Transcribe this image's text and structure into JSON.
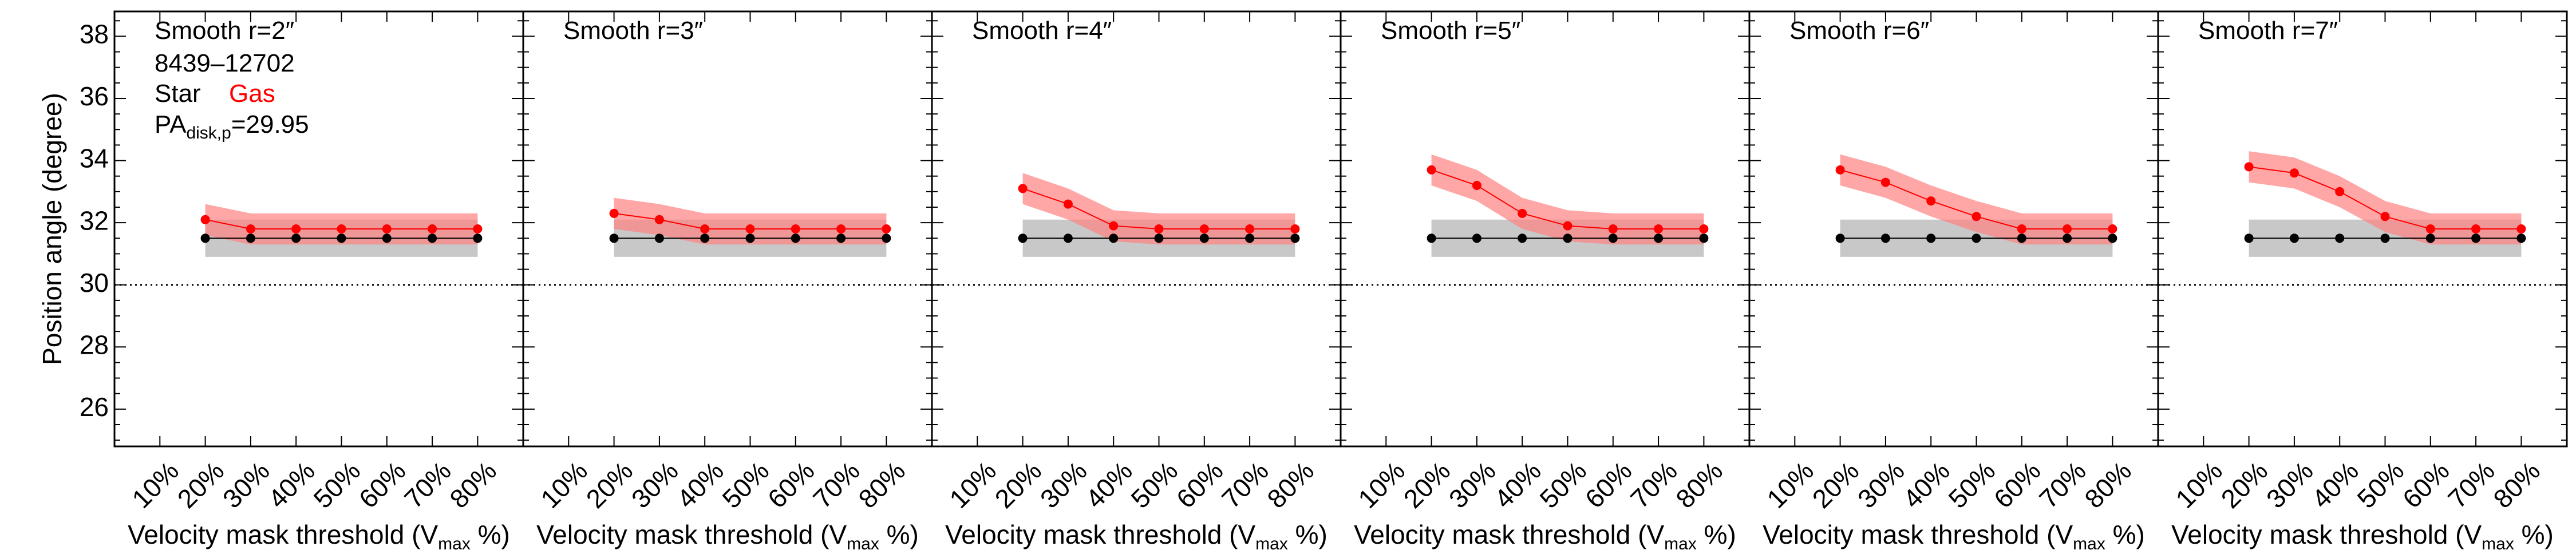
{
  "figure": {
    "ylabel": "Position angle (degree)",
    "xlabel_prefix": "Velocity mask threshold (V",
    "xlabel_sub": "max",
    "xlabel_suffix": " %)",
    "ylim": [
      24.8,
      38.8
    ],
    "yticks": [
      26,
      28,
      30,
      32,
      34,
      36,
      38
    ],
    "reference_line": 30,
    "categories": [
      "10%",
      "20%",
      "30%",
      "40%",
      "50%",
      "60%",
      "70%",
      "80%"
    ],
    "info": {
      "galaxy_id": "8439–12702",
      "star_label": "Star",
      "gas_label": "Gas",
      "pa_prefix": "PA",
      "pa_sub": "disk,p",
      "pa_value": "=29.95"
    },
    "colors": {
      "star": "#000000",
      "gas": "#ff0000",
      "gas_band": "#ff8080",
      "star_band": "#c8c8c8"
    }
  },
  "chart_data": [
    {
      "type": "line",
      "title": "Smooth r=2″",
      "categories": [
        "20%",
        "30%",
        "40%",
        "50%",
        "60%",
        "70%",
        "80%"
      ],
      "series": [
        {
          "name": "Star",
          "values": [
            31.5,
            31.5,
            31.5,
            31.5,
            31.5,
            31.5,
            31.5
          ],
          "band": [
            30.9,
            32.1
          ]
        },
        {
          "name": "Gas",
          "values": [
            32.1,
            31.8,
            31.8,
            31.8,
            31.8,
            31.8,
            31.8
          ],
          "band_lower": [
            31.6,
            31.3,
            31.3,
            31.3,
            31.3,
            31.3,
            31.3
          ],
          "band_upper": [
            32.6,
            32.3,
            32.3,
            32.3,
            32.3,
            32.3,
            32.3
          ]
        }
      ],
      "xlabel": "Velocity mask threshold (Vmax %)",
      "ylabel": "Position angle (degree)",
      "ylim": [
        24.8,
        38.8
      ]
    },
    {
      "type": "line",
      "title": "Smooth r=3″",
      "categories": [
        "20%",
        "30%",
        "40%",
        "50%",
        "60%",
        "70%",
        "80%"
      ],
      "series": [
        {
          "name": "Star",
          "values": [
            31.5,
            31.5,
            31.5,
            31.5,
            31.5,
            31.5,
            31.5
          ],
          "band": [
            30.9,
            32.1
          ]
        },
        {
          "name": "Gas",
          "values": [
            32.3,
            32.1,
            31.8,
            31.8,
            31.8,
            31.8,
            31.8
          ],
          "band_lower": [
            31.8,
            31.6,
            31.3,
            31.3,
            31.3,
            31.3,
            31.3
          ],
          "band_upper": [
            32.8,
            32.6,
            32.3,
            32.3,
            32.3,
            32.3,
            32.3
          ]
        }
      ],
      "xlabel": "Velocity mask threshold (Vmax %)",
      "ylabel": "Position angle (degree)",
      "ylim": [
        24.8,
        38.8
      ]
    },
    {
      "type": "line",
      "title": "Smooth r=4″",
      "categories": [
        "20%",
        "30%",
        "40%",
        "50%",
        "60%",
        "70%",
        "80%"
      ],
      "series": [
        {
          "name": "Star",
          "values": [
            31.5,
            31.5,
            31.5,
            31.5,
            31.5,
            31.5,
            31.5
          ],
          "band": [
            30.9,
            32.1
          ]
        },
        {
          "name": "Gas",
          "values": [
            33.1,
            32.6,
            31.9,
            31.8,
            31.8,
            31.8,
            31.8
          ],
          "band_lower": [
            32.6,
            32.1,
            31.4,
            31.3,
            31.3,
            31.3,
            31.3
          ],
          "band_upper": [
            33.6,
            33.1,
            32.4,
            32.3,
            32.3,
            32.3,
            32.3
          ]
        }
      ],
      "xlabel": "Velocity mask threshold (Vmax %)",
      "ylabel": "Position angle (degree)",
      "ylim": [
        24.8,
        38.8
      ]
    },
    {
      "type": "line",
      "title": "Smooth r=5″",
      "categories": [
        "20%",
        "30%",
        "40%",
        "50%",
        "60%",
        "70%",
        "80%"
      ],
      "series": [
        {
          "name": "Star",
          "values": [
            31.5,
            31.5,
            31.5,
            31.5,
            31.5,
            31.5,
            31.5
          ],
          "band": [
            30.9,
            32.1
          ]
        },
        {
          "name": "Gas",
          "values": [
            33.7,
            33.2,
            32.3,
            31.9,
            31.8,
            31.8,
            31.8
          ],
          "band_lower": [
            33.2,
            32.7,
            31.8,
            31.4,
            31.3,
            31.3,
            31.3
          ],
          "band_upper": [
            34.2,
            33.7,
            32.8,
            32.4,
            32.3,
            32.3,
            32.3
          ]
        }
      ],
      "xlabel": "Velocity mask threshold (Vmax %)",
      "ylabel": "Position angle (degree)",
      "ylim": [
        24.8,
        38.8
      ]
    },
    {
      "type": "line",
      "title": "Smooth r=6″",
      "categories": [
        "20%",
        "30%",
        "40%",
        "50%",
        "60%",
        "70%",
        "80%"
      ],
      "series": [
        {
          "name": "Star",
          "values": [
            31.5,
            31.5,
            31.5,
            31.5,
            31.5,
            31.5,
            31.5
          ],
          "band": [
            30.9,
            32.1
          ]
        },
        {
          "name": "Gas",
          "values": [
            33.7,
            33.3,
            32.7,
            32.2,
            31.8,
            31.8,
            31.8
          ],
          "band_lower": [
            33.2,
            32.8,
            32.2,
            31.7,
            31.3,
            31.3,
            31.3
          ],
          "band_upper": [
            34.2,
            33.8,
            33.2,
            32.7,
            32.3,
            32.3,
            32.3
          ]
        }
      ],
      "xlabel": "Velocity mask threshold (Vmax %)",
      "ylabel": "Position angle (degree)",
      "ylim": [
        24.8,
        38.8
      ]
    },
    {
      "type": "line",
      "title": "Smooth r=7″",
      "categories": [
        "20%",
        "30%",
        "40%",
        "50%",
        "60%",
        "70%",
        "80%"
      ],
      "series": [
        {
          "name": "Star",
          "values": [
            31.5,
            31.5,
            31.5,
            31.5,
            31.5,
            31.5,
            31.5
          ],
          "band": [
            30.9,
            32.1
          ]
        },
        {
          "name": "Gas",
          "values": [
            33.8,
            33.6,
            33.0,
            32.2,
            31.8,
            31.8,
            31.8
          ],
          "band_lower": [
            33.3,
            33.1,
            32.5,
            31.7,
            31.3,
            31.3,
            31.3
          ],
          "band_upper": [
            34.3,
            34.1,
            33.5,
            32.7,
            32.3,
            32.3,
            32.3
          ]
        }
      ],
      "xlabel": "Velocity mask threshold (Vmax %)",
      "ylabel": "Position angle (degree)",
      "ylim": [
        24.8,
        38.8
      ]
    }
  ]
}
